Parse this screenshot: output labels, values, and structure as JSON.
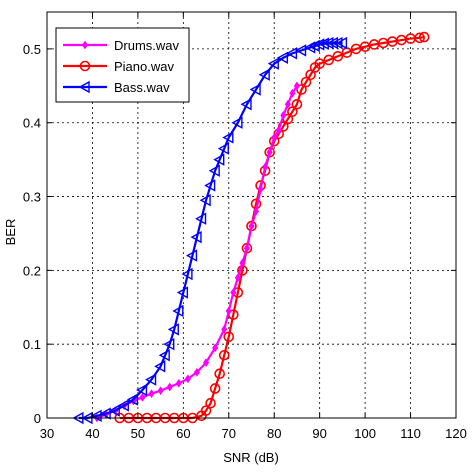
{
  "chart_data": {
    "type": "line",
    "xlabel": "SNR (dB)",
    "ylabel": "BER",
    "xlim": [
      30,
      120
    ],
    "ylim": [
      0,
      0.55
    ],
    "xticks": [
      30,
      40,
      50,
      60,
      70,
      80,
      90,
      100,
      110,
      120
    ],
    "yticks": [
      0,
      0.1,
      0.2,
      0.3,
      0.4,
      0.5
    ],
    "grid": true,
    "legend_position": "top-left",
    "series": [
      {
        "name": "Drums.wav",
        "color": "#ff00ff",
        "marker": "diamond",
        "x": [
          41,
          43,
          45,
          47,
          49,
          51,
          53,
          55,
          57,
          59,
          61,
          63,
          65,
          67,
          69,
          70,
          71,
          72,
          73,
          74,
          75,
          76,
          77,
          78,
          79,
          80,
          81,
          82,
          83,
          84,
          85
        ],
        "y": [
          0.0,
          0.005,
          0.01,
          0.017,
          0.023,
          0.028,
          0.033,
          0.037,
          0.042,
          0.047,
          0.053,
          0.062,
          0.075,
          0.095,
          0.12,
          0.145,
          0.17,
          0.19,
          0.21,
          0.23,
          0.26,
          0.28,
          0.31,
          0.34,
          0.36,
          0.38,
          0.39,
          0.41,
          0.425,
          0.44,
          0.45
        ]
      },
      {
        "name": "Piano.wav",
        "color": "#ff0000",
        "marker": "circle",
        "x": [
          46,
          48,
          50,
          52,
          54,
          56,
          58,
          60,
          62,
          64,
          65,
          66,
          67,
          68,
          69,
          70,
          71,
          72,
          73,
          74,
          75,
          76,
          77,
          78,
          79,
          80,
          81,
          82,
          83,
          84,
          85,
          86,
          87,
          88,
          89,
          90,
          92,
          94,
          96,
          98,
          100,
          102,
          104,
          106,
          108,
          110,
          112,
          113
        ],
        "y": [
          0.0,
          0.0,
          0.0,
          0.0,
          0.0,
          0.0,
          0.0,
          0.0,
          0.0,
          0.003,
          0.01,
          0.02,
          0.04,
          0.06,
          0.085,
          0.11,
          0.14,
          0.17,
          0.2,
          0.23,
          0.26,
          0.29,
          0.315,
          0.335,
          0.36,
          0.375,
          0.385,
          0.395,
          0.405,
          0.415,
          0.425,
          0.445,
          0.455,
          0.465,
          0.475,
          0.48,
          0.485,
          0.49,
          0.495,
          0.5,
          0.503,
          0.506,
          0.508,
          0.51,
          0.512,
          0.514,
          0.515,
          0.516
        ]
      },
      {
        "name": "Bass.wav",
        "color": "#0000ff",
        "marker": "triangle-left",
        "x": [
          37,
          39,
          41,
          43,
          45,
          47,
          49,
          51,
          53,
          55,
          56,
          57,
          58,
          59,
          60,
          61,
          62,
          63,
          64,
          65,
          66,
          67,
          68,
          69,
          70,
          72,
          74,
          76,
          78,
          80,
          82,
          84,
          86,
          88,
          89,
          90,
          91,
          92,
          93,
          94,
          95
        ],
        "y": [
          0.0,
          0.0,
          0.003,
          0.006,
          0.01,
          0.017,
          0.025,
          0.038,
          0.052,
          0.07,
          0.085,
          0.1,
          0.12,
          0.145,
          0.17,
          0.195,
          0.22,
          0.245,
          0.27,
          0.295,
          0.315,
          0.335,
          0.35,
          0.365,
          0.38,
          0.4,
          0.425,
          0.445,
          0.465,
          0.48,
          0.488,
          0.494,
          0.498,
          0.502,
          0.504,
          0.506,
          0.507,
          0.508,
          0.508,
          0.508,
          0.508
        ]
      }
    ]
  }
}
